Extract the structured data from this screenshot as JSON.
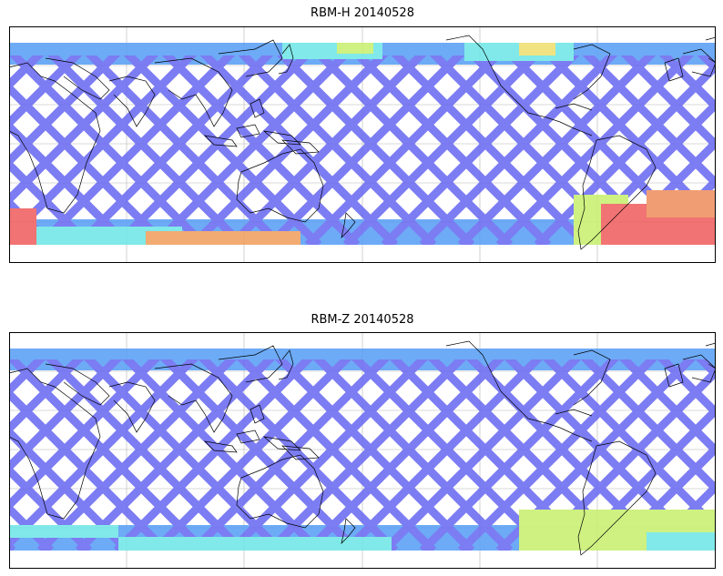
{
  "figure": {
    "panels": [
      {
        "title": "RBM-H 20140528",
        "variable": "RBM-H",
        "date": "20140528",
        "colormap": "jet",
        "features": [
          "coastlines",
          "lat-lon-gridlines",
          "satellite-swath-pattern"
        ],
        "high_value_regions": [
          "southern-ocean-west",
          "southern-ocean-east",
          "north-pacific-east"
        ]
      },
      {
        "title": "RBM-Z 20140528",
        "variable": "RBM-Z",
        "date": "20140528",
        "colormap": "jet",
        "features": [
          "coastlines",
          "lat-lon-gridlines",
          "satellite-swath-pattern"
        ],
        "high_value_regions": [
          "south-atlantic"
        ]
      }
    ],
    "colors": {
      "low": "#6a6af2",
      "mid_low": "#5aa0f5",
      "mid": "#70e6e6",
      "mid_high": "#c8f070",
      "high": "#f06060",
      "coastline": "#000000",
      "gridline": "#b4b4b4"
    }
  }
}
